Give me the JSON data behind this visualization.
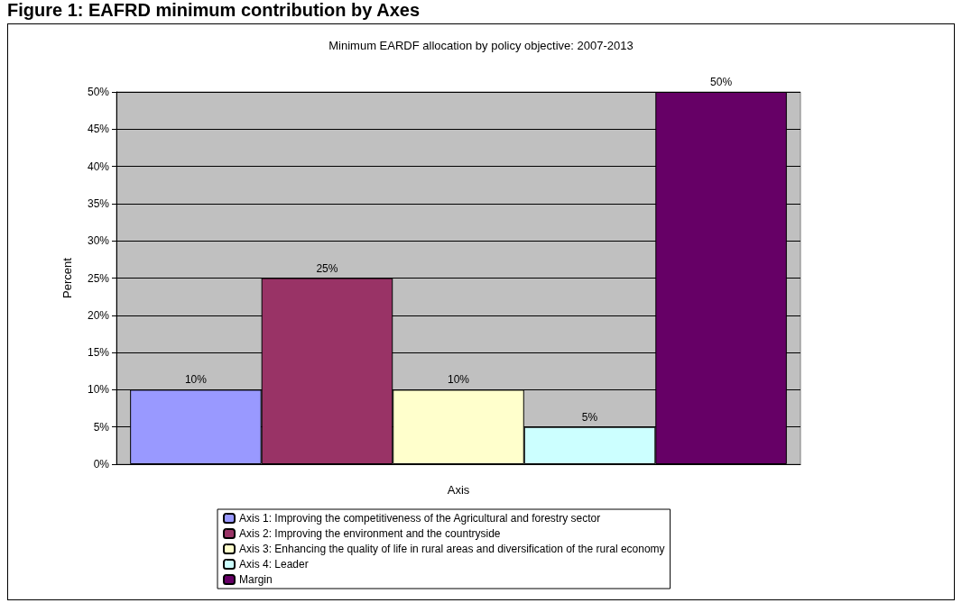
{
  "chart_data": {
    "type": "bar",
    "title": "Figure 1: EAFRD minimum contribution by Axes",
    "subtitle": "Minimum EARDF allocation by policy objective: 2007-2013",
    "xlabel": "Axis",
    "ylabel": "Percent",
    "categories": [
      null
    ],
    "series": [
      {
        "name": "Axis 1: Improving the competitiveness of the Agricultural and forestry sector",
        "color": "#9999ff",
        "values": [
          10
        ],
        "value_labels": [
          "10%"
        ]
      },
      {
        "name": "Axis 2: Improving the environment and the countryside",
        "color": "#993366",
        "values": [
          25
        ],
        "value_labels": [
          "25%"
        ]
      },
      {
        "name": "Axis 3: Enhancing the quality of life in rural areas and diversification of the rural economy",
        "color": "#ffffcc",
        "values": [
          10
        ],
        "value_labels": [
          "10%"
        ]
      },
      {
        "name": "Axis 4: Leader",
        "color": "#ccffff",
        "values": [
          5
        ],
        "value_labels": [
          "5%"
        ]
      },
      {
        "name": "Margin",
        "color": "#660066",
        "values": [
          50
        ],
        "value_labels": [
          "50%"
        ]
      }
    ],
    "ylim": [
      0,
      50
    ],
    "yticks": [
      {
        "value": 0,
        "label": "0%"
      },
      {
        "value": 5,
        "label": "5%"
      },
      {
        "value": 10,
        "label": "10%"
      },
      {
        "value": 15,
        "label": "15%"
      },
      {
        "value": 20,
        "label": "20%"
      },
      {
        "value": 25,
        "label": "25%"
      },
      {
        "value": 30,
        "label": "30%"
      },
      {
        "value": 35,
        "label": "35%"
      },
      {
        "value": 40,
        "label": "40%"
      },
      {
        "value": 45,
        "label": "45%"
      },
      {
        "value": 50,
        "label": "50%"
      }
    ],
    "grid": true,
    "legend": "bottom"
  }
}
